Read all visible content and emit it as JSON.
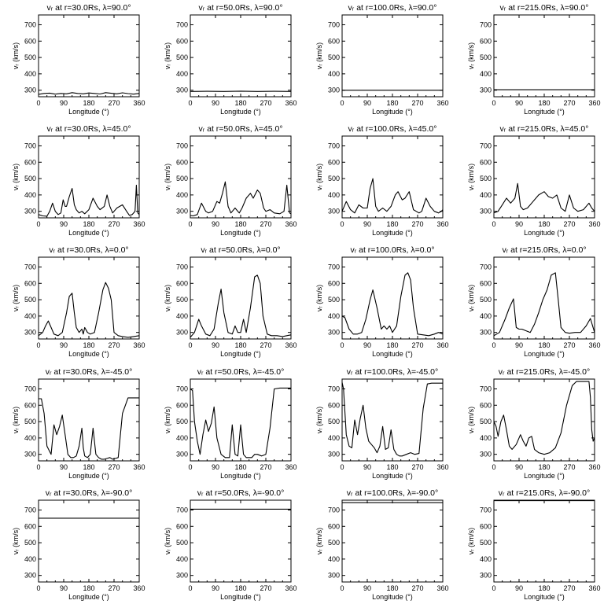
{
  "figure": {
    "x_ticks": [
      "0",
      "90",
      "180",
      "270",
      "360"
    ],
    "y_ticks": [
      "300",
      "400",
      "500",
      "600",
      "700"
    ],
    "xlabel": "Longitude (°)",
    "ylabel": "vᵣ (km/s)"
  },
  "chart_data": [
    {
      "type": "line",
      "title": "vᵣ at r=30.0Rs, λ=90.0°",
      "xlim": [
        0,
        360
      ],
      "ylim": [
        260,
        760
      ],
      "x": [
        0,
        20,
        40,
        60,
        80,
        100,
        120,
        140,
        160,
        180,
        200,
        220,
        240,
        260,
        280,
        300,
        320,
        340,
        360
      ],
      "y": [
        275,
        280,
        282,
        276,
        280,
        278,
        285,
        280,
        278,
        283,
        280,
        277,
        285,
        281,
        278,
        284,
        279,
        276,
        280
      ]
    },
    {
      "type": "line",
      "title": "vᵣ at r=50.0Rs, λ=90.0°",
      "xlim": [
        0,
        360
      ],
      "ylim": [
        260,
        760
      ],
      "x": [
        0,
        60,
        120,
        180,
        240,
        300,
        360
      ],
      "y": [
        292,
        293,
        292,
        294,
        292,
        293,
        292
      ]
    },
    {
      "type": "line",
      "title": "vᵣ at r=100.0Rs, λ=90.0°",
      "xlim": [
        0,
        360
      ],
      "ylim": [
        260,
        760
      ],
      "x": [
        0,
        360
      ],
      "y": [
        300,
        300
      ]
    },
    {
      "type": "line",
      "title": "vᵣ at r=215.0Rs, λ=90.0°",
      "xlim": [
        0,
        360
      ],
      "ylim": [
        260,
        760
      ],
      "x": [
        0,
        360
      ],
      "y": [
        303,
        303
      ]
    },
    {
      "type": "line",
      "title": "vᵣ at r=30.0Rs, λ=45.0°",
      "xlim": [
        0,
        360
      ],
      "ylim": [
        260,
        760
      ],
      "x": [
        0,
        15,
        30,
        40,
        50,
        60,
        70,
        80,
        88,
        95,
        100,
        110,
        120,
        128,
        135,
        145,
        155,
        165,
        180,
        195,
        210,
        220,
        235,
        245,
        255,
        265,
        280,
        300,
        315,
        325,
        335,
        345,
        350,
        355,
        360
      ],
      "y": [
        280,
        272,
        270,
        300,
        350,
        300,
        280,
        290,
        370,
        330,
        330,
        390,
        440,
        340,
        310,
        290,
        300,
        285,
        310,
        380,
        330,
        310,
        330,
        400,
        330,
        290,
        320,
        340,
        300,
        275,
        280,
        300,
        460,
        290,
        280
      ]
    },
    {
      "type": "line",
      "title": "vᵣ at r=50.0Rs, λ=45.0°",
      "xlim": [
        0,
        360
      ],
      "ylim": [
        260,
        760
      ],
      "x": [
        0,
        10,
        25,
        40,
        55,
        65,
        80,
        95,
        105,
        115,
        125,
        135,
        145,
        160,
        175,
        185,
        200,
        215,
        225,
        240,
        250,
        262,
        270,
        285,
        300,
        320,
        335,
        345,
        355,
        360
      ],
      "y": [
        275,
        272,
        280,
        350,
        300,
        290,
        300,
        360,
        350,
        410,
        480,
        330,
        290,
        320,
        290,
        320,
        380,
        410,
        380,
        430,
        410,
        320,
        300,
        310,
        290,
        285,
        300,
        460,
        290,
        285
      ]
    },
    {
      "type": "line",
      "title": "vᵣ at r=100.0Rs, λ=45.0°",
      "xlim": [
        0,
        360
      ],
      "ylim": [
        260,
        760
      ],
      "x": [
        0,
        15,
        30,
        45,
        60,
        75,
        90,
        100,
        110,
        120,
        130,
        145,
        160,
        175,
        190,
        200,
        215,
        225,
        240,
        255,
        265,
        275,
        285,
        300,
        315,
        330,
        345,
        355,
        360
      ],
      "y": [
        300,
        360,
        310,
        290,
        340,
        320,
        320,
        440,
        500,
        330,
        300,
        320,
        300,
        330,
        400,
        420,
        370,
        380,
        420,
        310,
        300,
        290,
        300,
        380,
        330,
        300,
        290,
        300,
        310
      ]
    },
    {
      "type": "line",
      "title": "vᵣ at r=215.0Rs, λ=45.0°",
      "xlim": [
        0,
        360
      ],
      "ylim": [
        260,
        760
      ],
      "x": [
        0,
        15,
        30,
        45,
        60,
        75,
        85,
        95,
        105,
        120,
        140,
        160,
        180,
        195,
        210,
        225,
        240,
        255,
        270,
        285,
        300,
        320,
        340,
        350,
        360
      ],
      "y": [
        290,
        300,
        340,
        380,
        350,
        380,
        470,
        330,
        310,
        320,
        360,
        400,
        420,
        390,
        380,
        400,
        320,
        300,
        400,
        320,
        300,
        310,
        350,
        320,
        300
      ]
    },
    {
      "type": "line",
      "title": "vᵣ at r=30.0Rs, λ=0.0°",
      "xlim": [
        0,
        360
      ],
      "ylim": [
        260,
        760
      ],
      "x": [
        0,
        15,
        25,
        35,
        45,
        55,
        70,
        85,
        100,
        110,
        120,
        128,
        135,
        145,
        155,
        160,
        165,
        175,
        185,
        200,
        215,
        230,
        240,
        250,
        260,
        270,
        285,
        300,
        320,
        340,
        360
      ],
      "y": [
        280,
        300,
        340,
        370,
        330,
        290,
        280,
        300,
        420,
        520,
        540,
        420,
        330,
        300,
        320,
        290,
        330,
        300,
        290,
        300,
        420,
        560,
        605,
        570,
        500,
        300,
        280,
        275,
        270,
        275,
        280
      ]
    },
    {
      "type": "line",
      "title": "vᵣ at r=50.0Rs, λ=0.0°",
      "xlim": [
        0,
        360
      ],
      "ylim": [
        260,
        760
      ],
      "x": [
        0,
        15,
        30,
        40,
        55,
        70,
        85,
        100,
        110,
        120,
        135,
        150,
        160,
        170,
        180,
        190,
        200,
        215,
        230,
        240,
        250,
        260,
        275,
        290,
        310,
        330,
        345,
        360
      ],
      "y": [
        270,
        300,
        380,
        340,
        290,
        280,
        320,
        480,
        565,
        420,
        300,
        290,
        340,
        300,
        300,
        380,
        300,
        450,
        640,
        650,
        600,
        400,
        290,
        280,
        280,
        275,
        280,
        285
      ]
    },
    {
      "type": "line",
      "title": "vᵣ at r=100.0Rs, λ=0.0°",
      "xlim": [
        0,
        360
      ],
      "ylim": [
        260,
        760
      ],
      "x": [
        0,
        10,
        25,
        40,
        55,
        70,
        85,
        100,
        110,
        125,
        140,
        150,
        160,
        170,
        180,
        195,
        210,
        225,
        235,
        245,
        255,
        270,
        290,
        310,
        330,
        345,
        360
      ],
      "y": [
        400,
        390,
        320,
        290,
        290,
        300,
        380,
        500,
        560,
        450,
        320,
        340,
        320,
        340,
        300,
        340,
        520,
        650,
        665,
        620,
        450,
        290,
        285,
        280,
        290,
        300,
        290
      ]
    },
    {
      "type": "line",
      "title": "vᵣ at r=215.0Rs, λ=0.0°",
      "xlim": [
        0,
        360
      ],
      "ylim": [
        260,
        760
      ],
      "x": [
        0,
        20,
        40,
        55,
        70,
        80,
        90,
        100,
        115,
        130,
        145,
        160,
        175,
        190,
        205,
        220,
        230,
        240,
        255,
        270,
        290,
        310,
        330,
        345,
        360
      ],
      "y": [
        280,
        300,
        380,
        450,
        505,
        330,
        320,
        320,
        310,
        300,
        350,
        420,
        500,
        560,
        650,
        665,
        500,
        330,
        300,
        295,
        300,
        300,
        340,
        385,
        300
      ]
    },
    {
      "type": "line",
      "title": "vᵣ at r=30.0Rs, λ=-45.0°",
      "xlim": [
        0,
        360
      ],
      "ylim": [
        260,
        760
      ],
      "x": [
        0,
        10,
        20,
        30,
        45,
        55,
        65,
        75,
        85,
        95,
        105,
        115,
        125,
        135,
        145,
        155,
        160,
        165,
        175,
        185,
        195,
        205,
        215,
        225,
        235,
        245,
        255,
        265,
        275,
        285,
        300,
        320,
        340,
        360
      ],
      "y": [
        640,
        640,
        550,
        350,
        300,
        480,
        420,
        470,
        540,
        420,
        300,
        280,
        280,
        290,
        350,
        460,
        340,
        290,
        280,
        300,
        460,
        300,
        280,
        270,
        270,
        275,
        280,
        270,
        275,
        280,
        550,
        645,
        645,
        645
      ]
    },
    {
      "type": "line",
      "title": "vᵣ at r=50.0Rs, λ=-45.0°",
      "xlim": [
        0,
        360
      ],
      "ylim": [
        260,
        760
      ],
      "x": [
        0,
        8,
        15,
        25,
        35,
        45,
        55,
        65,
        75,
        85,
        95,
        110,
        125,
        140,
        150,
        160,
        170,
        180,
        190,
        200,
        210,
        220,
        230,
        240,
        255,
        270,
        285,
        300,
        320,
        340,
        360
      ],
      "y": [
        700,
        690,
        500,
        380,
        300,
        420,
        510,
        440,
        490,
        590,
        400,
        300,
        280,
        280,
        480,
        300,
        290,
        480,
        300,
        280,
        280,
        280,
        300,
        300,
        290,
        300,
        460,
        700,
        705,
        705,
        705
      ]
    },
    {
      "type": "line",
      "title": "vᵣ at r=100.0Rs, λ=-45.0°",
      "xlim": [
        0,
        360
      ],
      "ylim": [
        260,
        760
      ],
      "x": [
        0,
        5,
        15,
        25,
        35,
        45,
        55,
        65,
        75,
        85,
        95,
        105,
        115,
        125,
        135,
        145,
        155,
        165,
        175,
        185,
        195,
        205,
        215,
        230,
        245,
        260,
        275,
        290,
        305,
        320,
        340,
        360
      ],
      "y": [
        740,
        700,
        420,
        350,
        340,
        510,
        420,
        520,
        600,
        460,
        380,
        360,
        340,
        310,
        350,
        470,
        330,
        340,
        450,
        330,
        300,
        290,
        290,
        300,
        310,
        300,
        305,
        580,
        730,
        735,
        735,
        735
      ]
    },
    {
      "type": "line",
      "title": "vᵣ at r=215.0Rs, λ=-45.0°",
      "xlim": [
        0,
        360
      ],
      "ylim": [
        260,
        760
      ],
      "x": [
        0,
        8,
        15,
        25,
        35,
        45,
        55,
        65,
        80,
        95,
        105,
        115,
        125,
        135,
        145,
        160,
        180,
        200,
        220,
        240,
        260,
        280,
        295,
        310,
        330,
        340,
        345,
        350,
        355,
        360
      ],
      "y": [
        500,
        470,
        410,
        500,
        540,
        450,
        350,
        330,
        360,
        420,
        380,
        350,
        400,
        410,
        330,
        310,
        300,
        310,
        340,
        430,
        600,
        720,
        745,
        745,
        745,
        745,
        650,
        450,
        380,
        400
      ]
    },
    {
      "type": "line",
      "title": "vᵣ at r=30.0Rs, λ=-90.0°",
      "xlim": [
        0,
        360
      ],
      "ylim": [
        260,
        760
      ],
      "x": [
        0,
        360
      ],
      "y": [
        650,
        650
      ]
    },
    {
      "type": "line",
      "title": "vᵣ at r=50.0Rs, λ=-90.0°",
      "xlim": [
        0,
        360
      ],
      "ylim": [
        260,
        760
      ],
      "x": [
        0,
        360
      ],
      "y": [
        705,
        705
      ]
    },
    {
      "type": "line",
      "title": "vᵣ at r=100.0Rs, λ=-90.0°",
      "xlim": [
        0,
        360
      ],
      "ylim": [
        260,
        760
      ],
      "x": [
        0,
        360
      ],
      "y": [
        745,
        745
      ]
    },
    {
      "type": "line",
      "title": "vᵣ at r=215.0Rs, λ=-90.0°",
      "xlim": [
        0,
        360
      ],
      "ylim": [
        260,
        760
      ],
      "x": [
        0,
        360
      ],
      "y": [
        757,
        757
      ]
    }
  ]
}
